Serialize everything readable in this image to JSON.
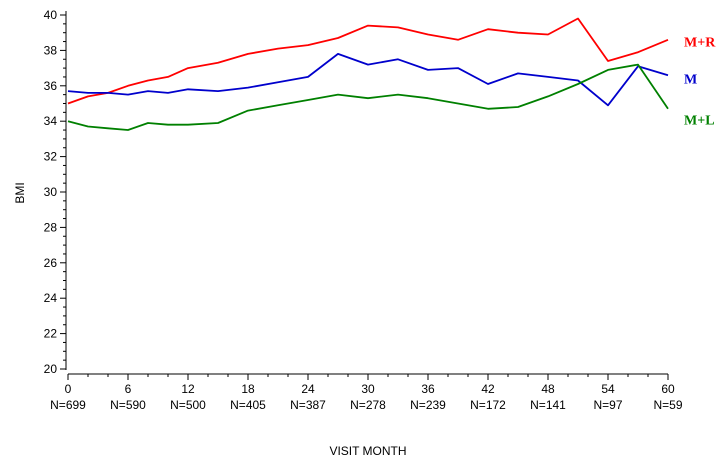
{
  "chart_data": {
    "type": "line",
    "title": "",
    "xlabel": "VISIT MONTH",
    "ylabel": "BMI",
    "xlim": [
      0,
      60
    ],
    "ylim": [
      20,
      40
    ],
    "grid": false,
    "legend": "direct labels at right end of lines",
    "x_ticks": [
      0,
      6,
      12,
      18,
      24,
      30,
      36,
      42,
      48,
      54,
      60
    ],
    "x_tick_labels": [
      "0",
      "6",
      "12",
      "18",
      "24",
      "30",
      "36",
      "42",
      "48",
      "54",
      "60"
    ],
    "n_labels": [
      "N=699",
      "N=590",
      "N=500",
      "N=405",
      "N=387",
      "N=278",
      "N=239",
      "N=172",
      "N=141",
      "N=97",
      "N=59"
    ],
    "y_ticks": [
      20,
      22,
      24,
      26,
      28,
      30,
      32,
      34,
      36,
      38,
      40
    ],
    "y_tick_labels": [
      "20",
      "22",
      "24",
      "26",
      "28",
      "30",
      "32",
      "34",
      "36",
      "38",
      "40"
    ],
    "x": [
      0,
      2,
      4,
      6,
      8,
      10,
      12,
      15,
      18,
      21,
      24,
      27,
      30,
      33,
      36,
      39,
      42,
      45,
      48,
      51,
      54,
      57,
      60
    ],
    "series": [
      {
        "name": "M+R",
        "color": "#ff0000",
        "values": [
          35.0,
          35.4,
          35.6,
          36.0,
          36.3,
          36.5,
          37.0,
          37.3,
          37.8,
          38.1,
          38.3,
          38.7,
          39.4,
          39.3,
          38.9,
          38.6,
          39.2,
          39.0,
          38.9,
          39.8,
          37.4,
          37.9,
          38.6
        ]
      },
      {
        "name": "M",
        "color": "#0000cc",
        "values": [
          35.7,
          35.6,
          35.6,
          35.5,
          35.7,
          35.6,
          35.8,
          35.7,
          35.9,
          36.2,
          36.5,
          37.8,
          37.2,
          37.5,
          36.9,
          37.0,
          36.1,
          36.7,
          36.5,
          36.3,
          34.9,
          37.1,
          36.6
        ]
      },
      {
        "name": "M+L",
        "color": "#008000",
        "values": [
          34.0,
          33.7,
          33.6,
          33.5,
          33.9,
          33.8,
          33.8,
          33.9,
          34.6,
          34.9,
          35.2,
          35.5,
          35.3,
          35.5,
          35.3,
          35.0,
          34.7,
          34.8,
          35.4,
          36.1,
          36.9,
          37.2,
          34.7
        ]
      }
    ]
  }
}
